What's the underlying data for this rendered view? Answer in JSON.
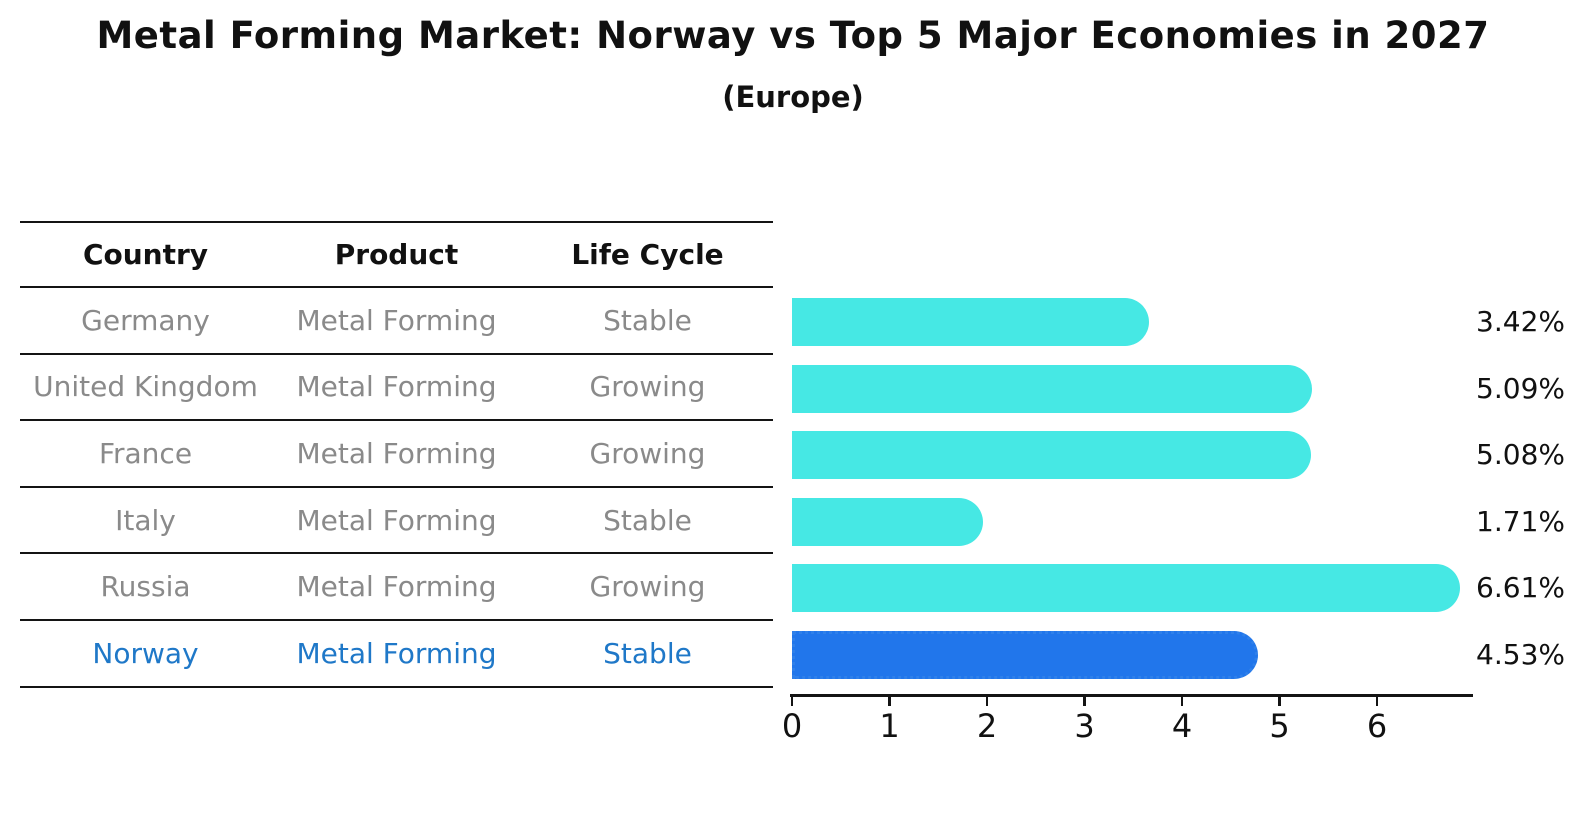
{
  "header": {
    "title": "Metal Forming Market: Norway vs Top 5 Major Economies in 2027",
    "subtitle": "(Europe)"
  },
  "table": {
    "headers": [
      "Country",
      "Product",
      "Life Cycle"
    ],
    "rows": [
      {
        "country": "Germany",
        "product": "Metal Forming",
        "life_cycle": "Stable"
      },
      {
        "country": "United Kingdom",
        "product": "Metal Forming",
        "life_cycle": "Growing"
      },
      {
        "country": "France",
        "product": "Metal Forming",
        "life_cycle": "Growing"
      },
      {
        "country": "Italy",
        "product": "Metal Forming",
        "life_cycle": "Stable"
      },
      {
        "country": "Russia",
        "product": "Metal Forming",
        "life_cycle": "Growing"
      },
      {
        "country": "Norway",
        "product": "Metal Forming",
        "life_cycle": "Stable"
      }
    ],
    "highlight_row": "Norway",
    "highlight_text_color": "#1f78c8",
    "body_text_color": "#8a8a8a",
    "header_text_color": "#111111"
  },
  "chart_data": {
    "type": "bar",
    "orientation": "horizontal",
    "title": "Metal Forming Market: Norway vs Top 5 Major Economies in 2027",
    "subtitle": "(Europe)",
    "categories": [
      "Germany",
      "United Kingdom",
      "France",
      "Italy",
      "Russia",
      "Norway"
    ],
    "values": [
      3.42,
      5.09,
      5.08,
      1.71,
      6.61,
      4.53
    ],
    "value_labels": [
      "3.42%",
      "5.09%",
      "5.08%",
      "1.71%",
      "6.61%",
      "4.53%"
    ],
    "x_ticks": [
      "0",
      "1",
      "2",
      "3",
      "4",
      "5",
      "6"
    ],
    "xlim": [
      0,
      7
    ],
    "xlabel": "",
    "ylabel": "",
    "grid": false,
    "legend": false,
    "bar_color": "#46e8e4",
    "highlight_index": 5,
    "highlight_color": "#2176eb",
    "highlight_border_color": "#2f80ea"
  }
}
